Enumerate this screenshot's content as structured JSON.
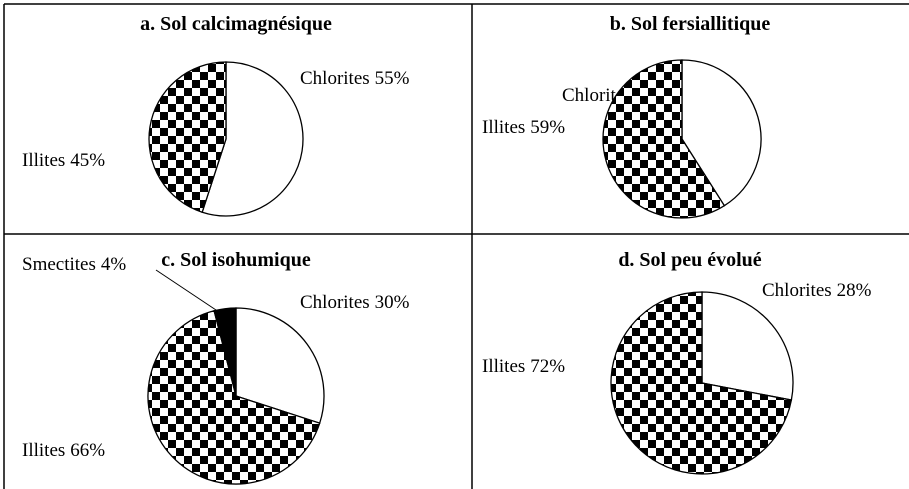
{
  "chart_data": [
    {
      "type": "pie",
      "title": "a. Sol calcimagnésique",
      "categories": [
        "Chlorites",
        "Illites"
      ],
      "values": [
        55,
        45
      ],
      "value_labels": [
        "55%",
        "45%"
      ],
      "colors": [
        "white",
        "checkerboard"
      ]
    },
    {
      "type": "pie",
      "title": "b. Sol fersiallitique",
      "categories": [
        "Chlorites",
        "Illites"
      ],
      "values": [
        41,
        59
      ],
      "value_labels": [
        "41%",
        "59%"
      ],
      "colors": [
        "white",
        "checkerboard"
      ]
    },
    {
      "type": "pie",
      "title": "c. Sol isohumique",
      "categories": [
        "Chlorites",
        "Illites",
        "Smectites"
      ],
      "values": [
        30,
        66,
        4
      ],
      "value_labels": [
        "30%",
        "66%",
        "4%"
      ],
      "colors": [
        "white",
        "checkerboard",
        "black"
      ]
    },
    {
      "type": "pie",
      "title": "d. Sol peu évolué",
      "categories": [
        "Chlorites",
        "Illites"
      ],
      "values": [
        28,
        72
      ],
      "value_labels": [
        "28%",
        "72%"
      ],
      "colors": [
        "white",
        "checkerboard"
      ]
    }
  ]
}
